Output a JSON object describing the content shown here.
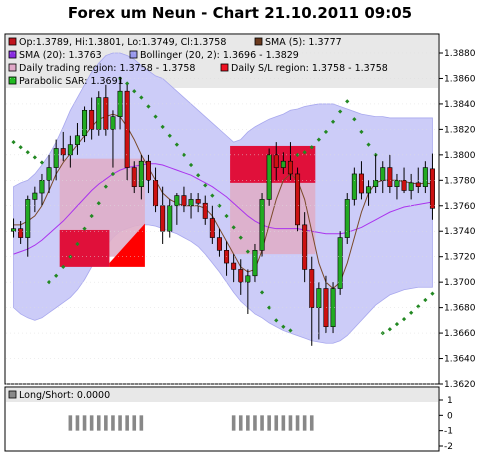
{
  "title": "Forex um Neun - Chart 21.10.2011 09:05",
  "legend": [
    {
      "label": "Op:1.3789, Hi:1.3801, Lo:1.3749, Cl:1.3758",
      "color": "#c0141e",
      "icon": "candle-box-icon"
    },
    {
      "label": "SMA (5): 1.3777",
      "color": "#6b3a1e",
      "icon": "sma5-box-icon"
    },
    {
      "label": "SMA (20): 1.3763",
      "color": "#8a2be2",
      "icon": "sma20-box-icon"
    },
    {
      "label": "Bollinger (20, 2): 1.3696 - 1.3829",
      "color": "#9999ee",
      "icon": "bollinger-box-icon"
    },
    {
      "label": "Daily trading region: 1.3758 - 1.3758",
      "color": "#e0a8c8",
      "icon": "trading-region-box-icon"
    },
    {
      "label": "Daily S/L region: 1.3758 - 1.3758",
      "color": "#ee1122",
      "icon": "sl-region-box-icon"
    },
    {
      "label": "Parabolic SAR: 1.3691",
      "color": "#22bb22",
      "icon": "psar-box-icon"
    }
  ],
  "sub_legend": {
    "label": "Long/Short: 0.0000",
    "color": "#888888"
  },
  "colors": {
    "bollinger_fill": "#ccccf8",
    "trading_region": "#dfaec8",
    "sl_region": "#e0103a",
    "candle_up": "#22aa22",
    "candle_down": "#cc1111",
    "sma5": "#7a4a2a",
    "sma20": "#aa33ee",
    "psar": "#228822",
    "ls_bar": "#888888"
  },
  "chart_data": [
    {
      "type": "candlestick",
      "title": "Forex um Neun - Chart 21.10.2011 09:05",
      "ylim": [
        1.362,
        1.388
      ],
      "yticks": [
        "1.3620",
        "1.3640",
        "1.3660",
        "1.3680",
        "1.3700",
        "1.3720",
        "1.3740",
        "1.3760",
        "1.3780",
        "1.3800",
        "1.3820",
        "1.3840",
        "1.3860",
        "1.3880"
      ],
      "candles": [
        [
          1.374,
          1.375,
          1.3735,
          1.3742
        ],
        [
          1.3742,
          1.3748,
          1.373,
          1.3735
        ],
        [
          1.3735,
          1.3768,
          1.372,
          1.3765
        ],
        [
          1.3765,
          1.3775,
          1.3755,
          1.377
        ],
        [
          1.377,
          1.3785,
          1.376,
          1.378
        ],
        [
          1.378,
          1.38,
          1.377,
          1.379
        ],
        [
          1.379,
          1.3812,
          1.378,
          1.3805
        ],
        [
          1.3805,
          1.3818,
          1.3795,
          1.38
        ],
        [
          1.38,
          1.3815,
          1.379,
          1.3808
        ],
        [
          1.3808,
          1.3825,
          1.38,
          1.3815
        ],
        [
          1.3815,
          1.3838,
          1.381,
          1.3835
        ],
        [
          1.3835,
          1.3845,
          1.3812,
          1.382
        ],
        [
          1.382,
          1.385,
          1.3815,
          1.3845
        ],
        [
          1.3845,
          1.3855,
          1.3815,
          1.382
        ],
        [
          1.382,
          1.3835,
          1.379,
          1.383
        ],
        [
          1.383,
          1.386,
          1.382,
          1.385
        ],
        [
          1.385,
          1.3855,
          1.378,
          1.379
        ],
        [
          1.379,
          1.3795,
          1.377,
          1.3775
        ],
        [
          1.3775,
          1.38,
          1.3765,
          1.3795
        ],
        [
          1.3795,
          1.38,
          1.377,
          1.378
        ],
        [
          1.378,
          1.379,
          1.3755,
          1.376
        ],
        [
          1.376,
          1.3775,
          1.373,
          1.374
        ],
        [
          1.374,
          1.3765,
          1.3735,
          1.376
        ],
        [
          1.376,
          1.377,
          1.3745,
          1.3768
        ],
        [
          1.3768,
          1.3775,
          1.3755,
          1.376
        ],
        [
          1.376,
          1.377,
          1.375,
          1.3765
        ],
        [
          1.3765,
          1.377,
          1.3755,
          1.3762
        ],
        [
          1.3762,
          1.3768,
          1.3745,
          1.375
        ],
        [
          1.375,
          1.376,
          1.373,
          1.3735
        ],
        [
          1.3735,
          1.3742,
          1.372,
          1.3725
        ],
        [
          1.3725,
          1.3732,
          1.3705,
          1.3715
        ],
        [
          1.3715,
          1.3722,
          1.37,
          1.371
        ],
        [
          1.371,
          1.3718,
          1.369,
          1.37
        ],
        [
          1.37,
          1.371,
          1.3675,
          1.3705
        ],
        [
          1.3705,
          1.373,
          1.37,
          1.3725
        ],
        [
          1.3725,
          1.377,
          1.372,
          1.3765
        ],
        [
          1.3765,
          1.3805,
          1.376,
          1.38
        ],
        [
          1.38,
          1.381,
          1.378,
          1.379
        ],
        [
          1.379,
          1.3802,
          1.3785,
          1.3795
        ],
        [
          1.3795,
          1.381,
          1.378,
          1.3785
        ],
        [
          1.3785,
          1.379,
          1.374,
          1.3745
        ],
        [
          1.3745,
          1.3755,
          1.37,
          1.371
        ],
        [
          1.371,
          1.372,
          1.365,
          1.368
        ],
        [
          1.368,
          1.37,
          1.3655,
          1.3695
        ],
        [
          1.3695,
          1.3705,
          1.366,
          1.3665
        ],
        [
          1.3665,
          1.37,
          1.366,
          1.3695
        ],
        [
          1.3695,
          1.374,
          1.369,
          1.3735
        ],
        [
          1.3735,
          1.377,
          1.373,
          1.3765
        ],
        [
          1.3765,
          1.379,
          1.376,
          1.3785
        ],
        [
          1.3785,
          1.3795,
          1.3765,
          1.377
        ],
        [
          1.377,
          1.378,
          1.376,
          1.3775
        ],
        [
          1.3775,
          1.38,
          1.377,
          1.378
        ],
        [
          1.378,
          1.3795,
          1.377,
          1.379
        ],
        [
          1.379,
          1.38,
          1.377,
          1.3775
        ],
        [
          1.3775,
          1.3785,
          1.3765,
          1.378
        ],
        [
          1.378,
          1.379,
          1.377,
          1.3772
        ],
        [
          1.3772,
          1.3785,
          1.3765,
          1.3778
        ],
        [
          1.3778,
          1.379,
          1.377,
          1.3775
        ],
        [
          1.3775,
          1.3795,
          1.377,
          1.379
        ],
        [
          1.3789,
          1.3801,
          1.3749,
          1.3758
        ]
      ],
      "sma5": [
        1.3745,
        1.3745,
        1.3748,
        1.3752,
        1.376,
        1.3772,
        1.3785,
        1.3794,
        1.3801,
        1.3808,
        1.3815,
        1.3822,
        1.3828,
        1.383,
        1.3832,
        1.383,
        1.3822,
        1.3812,
        1.38,
        1.379,
        1.378,
        1.377,
        1.3765,
        1.3762,
        1.376,
        1.376,
        1.376,
        1.3758,
        1.3752,
        1.3742,
        1.3732,
        1.3722,
        1.3712,
        1.3708,
        1.371,
        1.3725,
        1.3745,
        1.3765,
        1.378,
        1.3785,
        1.378,
        1.3765,
        1.374,
        1.3715,
        1.37,
        1.3695,
        1.37,
        1.3715,
        1.3735,
        1.3755,
        1.377,
        1.3778,
        1.378,
        1.378,
        1.378,
        1.3779,
        1.3778,
        1.3777,
        1.3778,
        1.3777
      ],
      "sma20": [
        1.3722,
        1.3724,
        1.3726,
        1.3729,
        1.3733,
        1.3738,
        1.3743,
        1.3748,
        1.3754,
        1.376,
        1.3766,
        1.3772,
        1.3777,
        1.3781,
        1.3785,
        1.3788,
        1.379,
        1.3791,
        1.3792,
        1.3793,
        1.3793,
        1.3792,
        1.379,
        1.3788,
        1.3786,
        1.3784,
        1.3781,
        1.3778,
        1.3775,
        1.3771,
        1.3767,
        1.3762,
        1.3757,
        1.3752,
        1.3748,
        1.3745,
        1.3743,
        1.3742,
        1.3742,
        1.3742,
        1.3742,
        1.3741,
        1.374,
        1.3739,
        1.3738,
        1.3738,
        1.3738,
        1.3739,
        1.3741,
        1.3743,
        1.3746,
        1.3749,
        1.3752,
        1.3755,
        1.3757,
        1.3759,
        1.376,
        1.3761,
        1.3762,
        1.3763
      ],
      "bb_upper": [
        1.3775,
        1.3778,
        1.378,
        1.3785,
        1.3792,
        1.38,
        1.381,
        1.3822,
        1.3835,
        1.3845,
        1.3855,
        1.3865,
        1.3872,
        1.3878,
        1.388,
        1.388,
        1.3878,
        1.3875,
        1.387,
        1.3866,
        1.3862,
        1.386,
        1.3855,
        1.385,
        1.3845,
        1.384,
        1.3835,
        1.383,
        1.3825,
        1.382,
        1.3815,
        1.381,
        1.3812,
        1.3818,
        1.3822,
        1.3825,
        1.3828,
        1.383,
        1.3832,
        1.3835,
        1.3836,
        1.3838,
        1.3839,
        1.384,
        1.384,
        1.384,
        1.3838,
        1.3836,
        1.3834,
        1.3832,
        1.3831,
        1.383,
        1.383,
        1.3829,
        1.3829,
        1.3829,
        1.3829,
        1.3829,
        1.3829,
        1.3829
      ],
      "bb_lower": [
        1.368,
        1.3675,
        1.3672,
        1.367,
        1.3672,
        1.3676,
        1.368,
        1.3684,
        1.3688,
        1.3694,
        1.3702,
        1.3712,
        1.372,
        1.3728,
        1.3735,
        1.374,
        1.3742,
        1.3744,
        1.3745,
        1.3745,
        1.3744,
        1.3742,
        1.374,
        1.3738,
        1.3735,
        1.3732,
        1.3728,
        1.3722,
        1.3715,
        1.3708,
        1.37,
        1.3692,
        1.3685,
        1.368,
        1.3675,
        1.3672,
        1.3668,
        1.3665,
        1.3662,
        1.366,
        1.3658,
        1.3656,
        1.3654,
        1.3653,
        1.3652,
        1.3652,
        1.3654,
        1.3658,
        1.3664,
        1.367,
        1.3676,
        1.3682,
        1.3686,
        1.369,
        1.3692,
        1.3694,
        1.3695,
        1.3696,
        1.3696,
        1.3696
      ],
      "psar": [
        1.381,
        1.3806,
        1.3802,
        1.3798,
        1.3794,
        1.37,
        1.3705,
        1.3712,
        1.372,
        1.373,
        1.3742,
        1.3752,
        1.3762,
        1.3775,
        1.3785,
        1.386,
        1.3856,
        1.385,
        1.3845,
        1.3838,
        1.383,
        1.3822,
        1.3815,
        1.3808,
        1.38,
        1.3792,
        1.3784,
        1.3776,
        1.3768,
        1.376,
        1.3752,
        1.3743,
        1.3735,
        1.3724,
        1.3712,
        1.3692,
        1.368,
        1.367,
        1.3665,
        1.3662,
        1.38,
        1.3802,
        1.3806,
        1.3812,
        1.3818,
        1.3826,
        1.3834,
        1.3842,
        1.3828,
        1.3818,
        1.3808,
        1.38,
        1.366,
        1.3663,
        1.3667,
        1.3671,
        1.3676,
        1.3681,
        1.3686,
        1.3691
      ],
      "trading_regions": [
        {
          "start": 7,
          "end": 19,
          "low": 1.372,
          "high": 1.3797
        },
        {
          "start": 31,
          "end": 43,
          "low": 1.3722,
          "high": 1.3795
        }
      ],
      "sl_regions": [
        {
          "start": 7,
          "end": 14,
          "low": 1.3712,
          "high": 1.3741
        },
        {
          "start": 14,
          "end": 19,
          "low": 1.3712,
          "high": 1.3741,
          "slope": "up"
        },
        {
          "start": 31,
          "end": 43,
          "low": 1.3778,
          "high": 1.3807
        }
      ]
    },
    {
      "type": "bar",
      "title": "Long/Short: 0.0000",
      "ylim": [
        -2,
        1
      ],
      "yticks": [
        "-2",
        "-1",
        "0",
        "1"
      ],
      "values": [
        0,
        0,
        0,
        0,
        0,
        0,
        0,
        0,
        0,
        0,
        0,
        0,
        0,
        0,
        0,
        0,
        0,
        0,
        0,
        0,
        0,
        0,
        0,
        0,
        0,
        0,
        0,
        0,
        0,
        0,
        0,
        0,
        0,
        0,
        0,
        0,
        0,
        0,
        0,
        0,
        0,
        0,
        0,
        0,
        0,
        0,
        0,
        0,
        0,
        0,
        0,
        0,
        0,
        0,
        0,
        0,
        0,
        0,
        0,
        0
      ],
      "bars_shown": [
        {
          "start": 8,
          "end": 19,
          "value": -1
        },
        {
          "start": 31,
          "end": 43,
          "value": -1
        }
      ]
    }
  ]
}
